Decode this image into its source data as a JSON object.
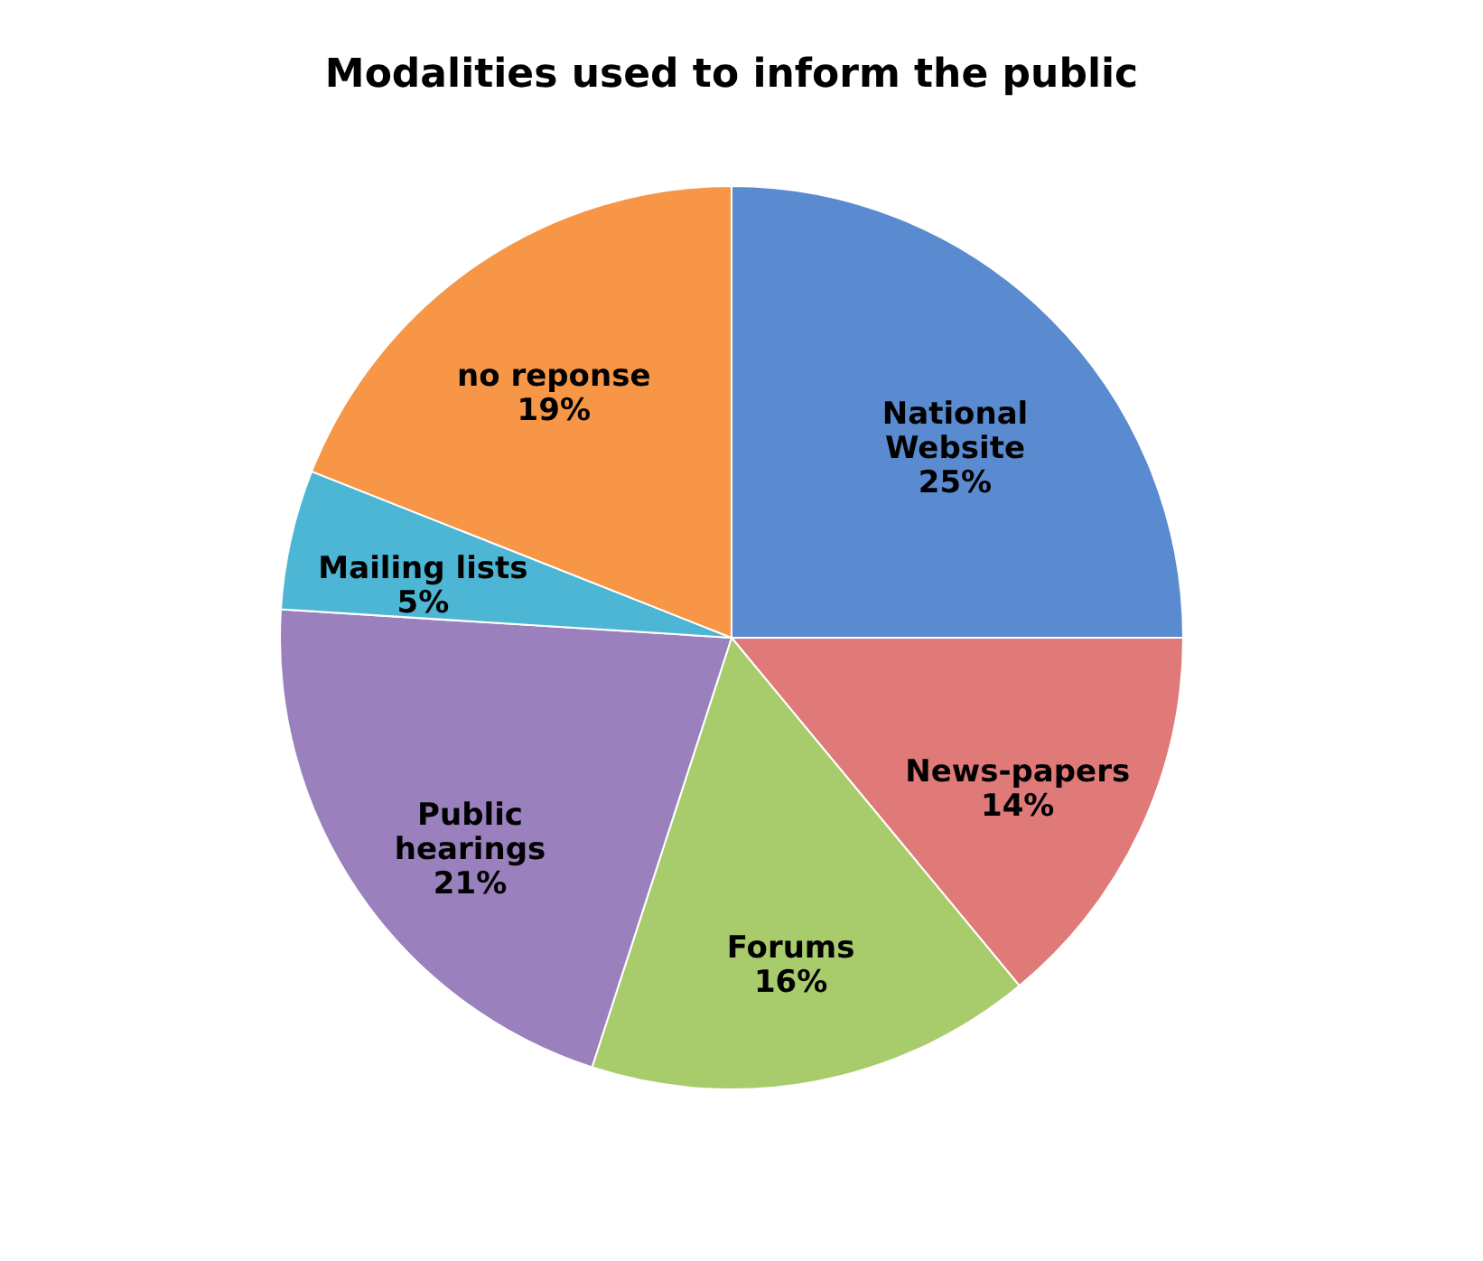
{
  "chart_data": {
    "type": "pie",
    "title": "Modalities used to inform the public",
    "categories": [
      "National Website",
      "News-papers",
      "Forums",
      "Public hearings",
      "Mailing lists",
      "no reponse"
    ],
    "values": [
      25,
      14,
      16,
      21,
      5,
      19
    ],
    "value_labels": [
      "25%",
      "14%",
      "16%",
      "21%",
      "5%",
      "19%"
    ],
    "colors": [
      "#5a8ad0",
      "#e07a78",
      "#a8cc6c",
      "#9a80bd",
      "#4db6d4",
      "#f79646"
    ],
    "legend": false
  }
}
